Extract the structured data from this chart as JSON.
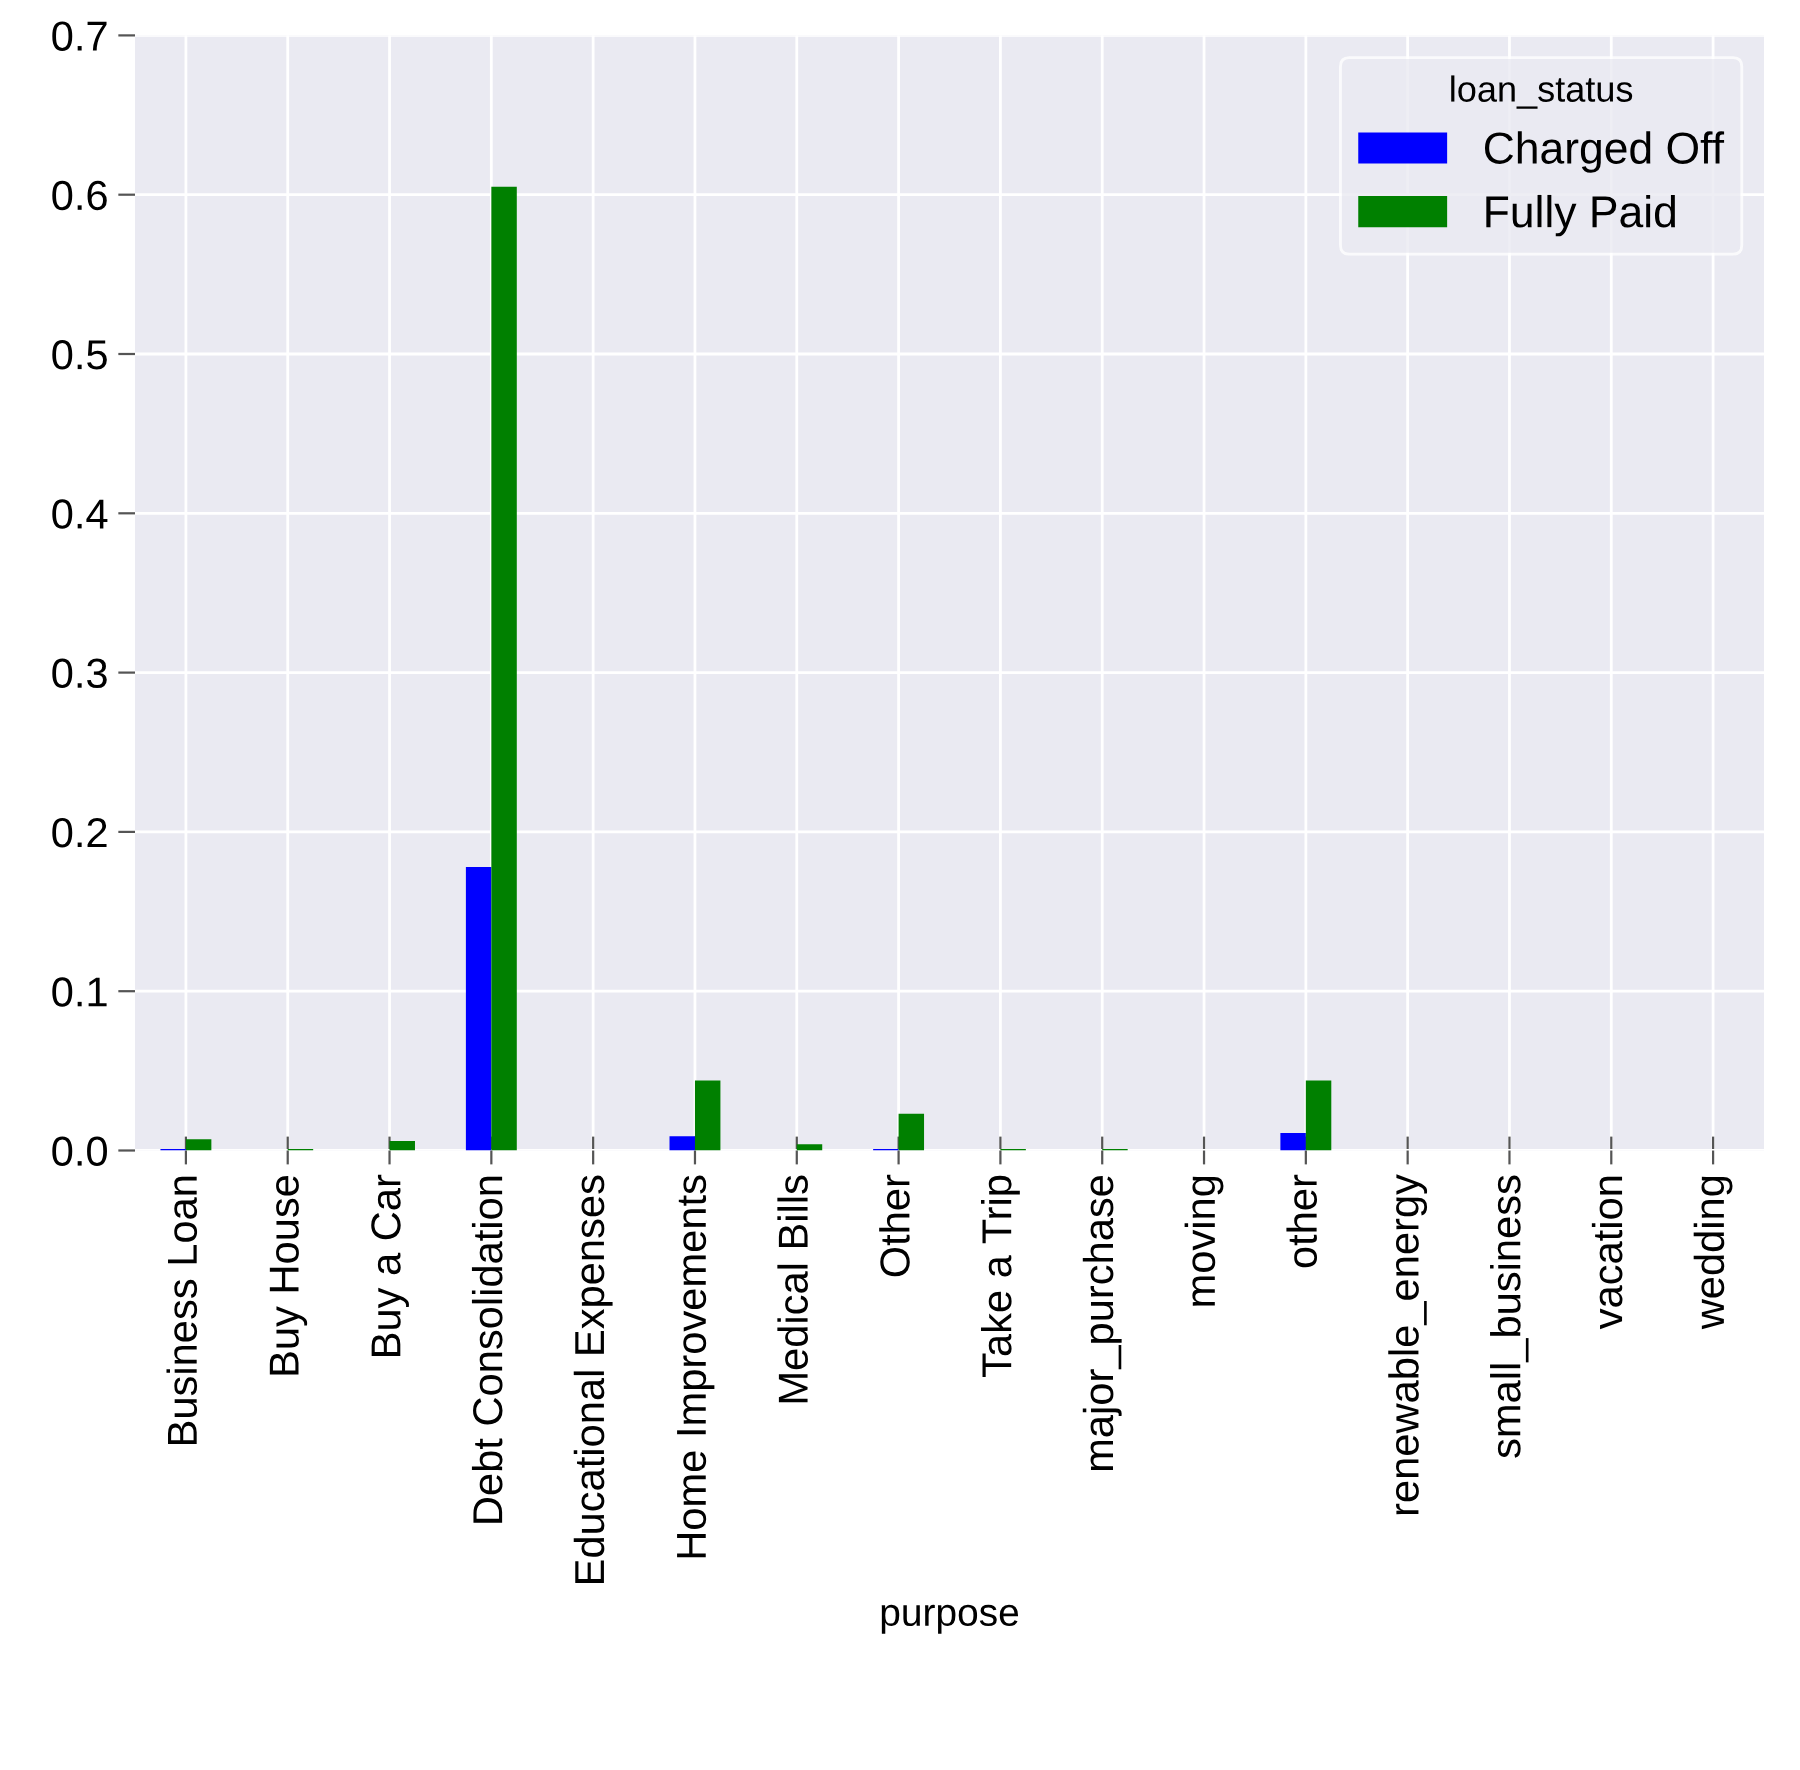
{
  "chart_data": {
    "type": "bar",
    "xlabel": "purpose",
    "legend_title": "loan_status",
    "legend": "top right",
    "grid": true,
    "categories": [
      "Business Loan",
      "Buy House",
      "Buy a Car",
      "Debt Consolidation",
      "Educational Expenses",
      "Home Improvements",
      "Medical Bills",
      "Other",
      "Take a Trip",
      "major_purchase",
      "moving",
      "other",
      "renewable_energy",
      "small_business",
      "vacation",
      "wedding"
    ],
    "series": [
      {
        "name": "Charged Off",
        "color": "#0000ff",
        "values": [
          0.001,
          0,
          0,
          0.178,
          0,
          0.009,
          0,
          0.001,
          0,
          0,
          0,
          0.011,
          0,
          0,
          0,
          0
        ]
      },
      {
        "name": "Fully Paid",
        "color": "#008000",
        "values": [
          0.007,
          0.001,
          0.006,
          0.605,
          0,
          0.044,
          0.004,
          0.023,
          0.001,
          0.001,
          0,
          0.044,
          0,
          0,
          0,
          0
        ]
      }
    ],
    "ylim": [
      0,
      0.7
    ],
    "yticks": [
      {
        "value": 0,
        "label": "0.0"
      },
      0.1,
      0.2,
      0.3,
      0.4,
      0.5,
      0.6,
      0.7
    ]
  }
}
